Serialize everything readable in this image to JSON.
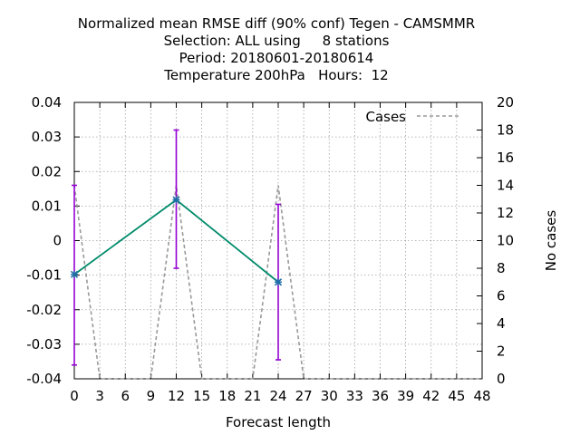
{
  "chart_data": {
    "type": "line",
    "title_lines": [
      "Normalized mean RMSE diff (90% conf) Tegen - CAMSMMR",
      "Selection: ALL using     8 stations",
      "Period: 20180601-20180614",
      "Temperature 200hPa   Hours:  12"
    ],
    "xlabel": "Forecast length",
    "ylabel": "",
    "y2label": "No cases",
    "xlim": [
      0,
      48
    ],
    "ylim": [
      -0.04,
      0.04
    ],
    "y2lim": [
      0,
      20
    ],
    "x_ticks": [
      0,
      3,
      6,
      9,
      12,
      15,
      18,
      21,
      24,
      27,
      30,
      33,
      36,
      39,
      42,
      45,
      48
    ],
    "y_ticks": [
      -0.04,
      -0.03,
      -0.02,
      -0.01,
      0,
      0.01,
      0.02,
      0.03,
      0.04
    ],
    "y_tick_labels": [
      "-0.04",
      "-0.03",
      "-0.02",
      "-0.01",
      "0",
      "0.01",
      "0.02",
      "0.03",
      "0.04"
    ],
    "y2_ticks": [
      0,
      2,
      4,
      6,
      8,
      10,
      12,
      14,
      16,
      18,
      20
    ],
    "grid": true,
    "legend_position": "top-right",
    "series": [
      {
        "name": "",
        "axis": "left",
        "color": "#008b6b",
        "x": [
          0,
          12,
          24
        ],
        "y": [
          -0.0098,
          0.0118,
          -0.012
        ],
        "err_low": [
          -0.036,
          -0.008,
          -0.0345
        ],
        "err_high": [
          0.016,
          0.032,
          0.0105
        ],
        "err_color": "#9400d3"
      },
      {
        "name": "Cases",
        "axis": "right",
        "color": "#999999",
        "dash": true,
        "x": [
          0,
          3,
          9,
          12,
          15,
          21,
          24,
          27,
          48
        ],
        "y": [
          14,
          0,
          0,
          14,
          0,
          0,
          14,
          0,
          0
        ]
      }
    ]
  }
}
